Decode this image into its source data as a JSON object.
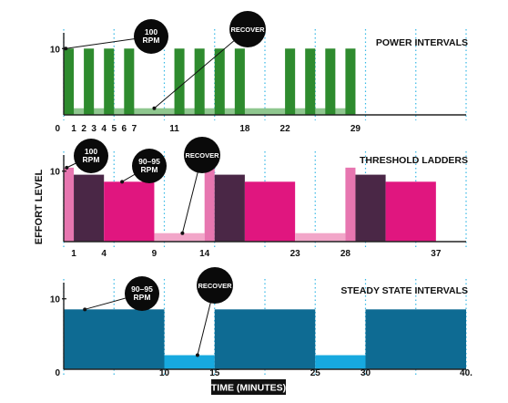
{
  "theme": {
    "power": "#2e8b2e",
    "power_recover": "#8fc78f",
    "ladder_dark": "#4a2746",
    "ladder_magenta": "#e0167f",
    "ladder_pink": "#e776b0",
    "ladder_light_pink": "#f2a6c9",
    "steady": "#0e6b93",
    "steady_recover": "#17a9df",
    "guide": "#35b8e6",
    "axis": "#222222",
    "bubble": "#0a0a0a"
  },
  "axis_labels": {
    "y": "EFFORT LEVEL",
    "x": "TIME (MINUTES)"
  },
  "chart_data": [
    {
      "type": "bar",
      "title": "POWER INTERVALS",
      "ytick_top": "10",
      "origin_label": "0",
      "xtick_labels": [
        {
          "t": 1,
          "label": "1"
        },
        {
          "t": 2,
          "label": "2"
        },
        {
          "t": 3,
          "label": "3"
        },
        {
          "t": 4,
          "label": "4"
        },
        {
          "t": 5,
          "label": "5"
        },
        {
          "t": 6,
          "label": "6"
        },
        {
          "t": 7,
          "label": "7"
        },
        {
          "t": 11,
          "label": "11"
        },
        {
          "t": 18,
          "label": "18"
        },
        {
          "t": 22,
          "label": "22"
        },
        {
          "t": 29,
          "label": "29"
        }
      ],
      "xlim": [
        0,
        40
      ],
      "ylim": [
        0,
        11
      ],
      "recover_band": {
        "start": 0,
        "end": 29,
        "level": 1,
        "color_key": "power_recover"
      },
      "bars": [
        {
          "start": 0,
          "end": 1,
          "level": 10,
          "color_key": "power"
        },
        {
          "start": 2,
          "end": 3,
          "level": 10,
          "color_key": "power"
        },
        {
          "start": 4,
          "end": 5,
          "level": 10,
          "color_key": "power"
        },
        {
          "start": 6,
          "end": 7,
          "level": 10,
          "color_key": "power"
        },
        {
          "start": 11,
          "end": 12,
          "level": 10,
          "color_key": "power"
        },
        {
          "start": 13,
          "end": 14,
          "level": 10,
          "color_key": "power"
        },
        {
          "start": 15,
          "end": 16,
          "level": 10,
          "color_key": "power"
        },
        {
          "start": 17,
          "end": 18,
          "level": 10,
          "color_key": "power"
        },
        {
          "start": 22,
          "end": 23,
          "level": 10,
          "color_key": "power"
        },
        {
          "start": 24,
          "end": 25,
          "level": 10,
          "color_key": "power"
        },
        {
          "start": 26,
          "end": 27,
          "level": 10,
          "color_key": "power"
        },
        {
          "start": 28,
          "end": 29,
          "level": 10,
          "color_key": "power"
        }
      ],
      "callouts": [
        {
          "text": [
            "100",
            "RPM"
          ],
          "target_t": 0.2,
          "target_level": 10
        },
        {
          "text": [
            "RECOVER"
          ],
          "target_t": 9,
          "target_level": 1
        }
      ]
    },
    {
      "type": "bar",
      "title": "THRESHOLD LADDERS",
      "ytick_top": "10",
      "origin_label": "",
      "xtick_labels": [
        {
          "t": 1,
          "label": "1"
        },
        {
          "t": 4,
          "label": "4"
        },
        {
          "t": 9,
          "label": "9"
        },
        {
          "t": 14,
          "label": "14"
        },
        {
          "t": 23,
          "label": "23"
        },
        {
          "t": 28,
          "label": "28"
        },
        {
          "t": 37,
          "label": "37"
        }
      ],
      "xlim": [
        0,
        40
      ],
      "ylim": [
        0,
        11
      ],
      "bars": [
        {
          "start": 0,
          "end": 1,
          "level": 10.5,
          "color_key": "ladder_pink"
        },
        {
          "start": 1,
          "end": 4,
          "level": 9.5,
          "color_key": "ladder_dark"
        },
        {
          "start": 4,
          "end": 9,
          "level": 8.5,
          "color_key": "ladder_magenta"
        },
        {
          "start": 9,
          "end": 14,
          "level": 1.2,
          "color_key": "ladder_light_pink"
        },
        {
          "start": 14,
          "end": 15,
          "level": 10.5,
          "color_key": "ladder_pink"
        },
        {
          "start": 15,
          "end": 18,
          "level": 9.5,
          "color_key": "ladder_dark"
        },
        {
          "start": 18,
          "end": 23,
          "level": 8.5,
          "color_key": "ladder_magenta"
        },
        {
          "start": 23,
          "end": 28,
          "level": 1.2,
          "color_key": "ladder_light_pink"
        },
        {
          "start": 28,
          "end": 29,
          "level": 10.5,
          "color_key": "ladder_pink"
        },
        {
          "start": 29,
          "end": 32,
          "level": 9.5,
          "color_key": "ladder_dark"
        },
        {
          "start": 32,
          "end": 37,
          "level": 8.5,
          "color_key": "ladder_magenta"
        }
      ],
      "callouts": [
        {
          "text": [
            "100",
            "RPM"
          ],
          "target_t": 0.3,
          "target_level": 10.5
        },
        {
          "text": [
            "90–95",
            "RPM"
          ],
          "target_t": 5.8,
          "target_level": 8.5
        },
        {
          "text": [
            "RECOVER"
          ],
          "target_t": 11.8,
          "target_level": 1.2
        }
      ]
    },
    {
      "type": "bar",
      "title": "STEADY STATE INTERVALS",
      "ytick_top": "10",
      "origin_label": "0",
      "xtick_labels": [
        {
          "t": 10,
          "label": "10"
        },
        {
          "t": 15,
          "label": "15"
        },
        {
          "t": 25,
          "label": "25"
        },
        {
          "t": 30,
          "label": "30"
        },
        {
          "t": 40,
          "label": "40."
        }
      ],
      "xlim": [
        0,
        40
      ],
      "ylim": [
        0,
        11
      ],
      "bars": [
        {
          "start": 0,
          "end": 10,
          "level": 8.5,
          "color_key": "steady"
        },
        {
          "start": 10,
          "end": 15,
          "level": 2,
          "color_key": "steady_recover"
        },
        {
          "start": 15,
          "end": 25,
          "level": 8.5,
          "color_key": "steady"
        },
        {
          "start": 25,
          "end": 30,
          "level": 2,
          "color_key": "steady_recover"
        },
        {
          "start": 30,
          "end": 40,
          "level": 8.5,
          "color_key": "steady"
        }
      ],
      "callouts": [
        {
          "text": [
            "90–95",
            "RPM"
          ],
          "target_t": 2.1,
          "target_level": 8.5
        },
        {
          "text": [
            "RECOVER"
          ],
          "target_t": 13.3,
          "target_level": 2
        }
      ]
    }
  ]
}
